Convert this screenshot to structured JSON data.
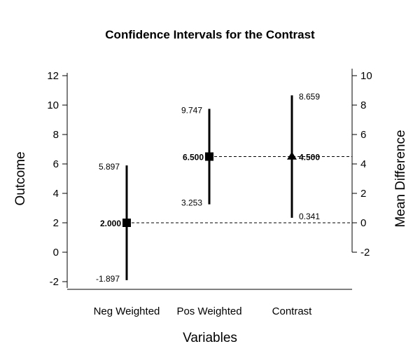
{
  "chart_data": {
    "type": "interval",
    "title": "Confidence Intervals for the Contrast",
    "xlabel": "Variables",
    "ylabel_left": "Outcome",
    "ylabel_right": "Mean Difference",
    "categories": [
      "Neg Weighted",
      "Pos Weighted",
      "Contrast"
    ],
    "left_axis": {
      "ylim": [
        -2.5,
        12.5
      ],
      "ticks": [
        -2,
        0,
        2,
        4,
        6,
        8,
        10,
        12
      ]
    },
    "right_axis": {
      "ylim": [
        -2,
        10
      ],
      "ticks": [
        -2,
        0,
        2,
        4,
        6,
        8,
        10
      ],
      "zero_at_left_value": 2
    },
    "points": [
      {
        "category": "Neg Weighted",
        "axis": "left",
        "estimate": 2.0,
        "lower": -1.897,
        "upper": 5.897,
        "labels": {
          "estimate": "2.000",
          "lower": "-1.897",
          "upper": "5.897"
        },
        "marker": "square"
      },
      {
        "category": "Pos Weighted",
        "axis": "left",
        "estimate": 6.5,
        "lower": 3.253,
        "upper": 9.747,
        "labels": {
          "estimate": "6.500",
          "lower": "3.253",
          "upper": "9.747"
        },
        "marker": "square"
      },
      {
        "category": "Contrast",
        "axis": "right",
        "estimate": 4.5,
        "lower": 0.341,
        "upper": 8.659,
        "labels": {
          "estimate": "4.500",
          "lower": "0.341",
          "upper": "8.659"
        },
        "marker": "triangle"
      }
    ],
    "reference_lines": [
      {
        "axis": "left",
        "value": 2.0,
        "style": "dashed"
      },
      {
        "axis": "left",
        "value": 6.5,
        "style": "dashed"
      }
    ],
    "grid": false,
    "legend": "none"
  }
}
